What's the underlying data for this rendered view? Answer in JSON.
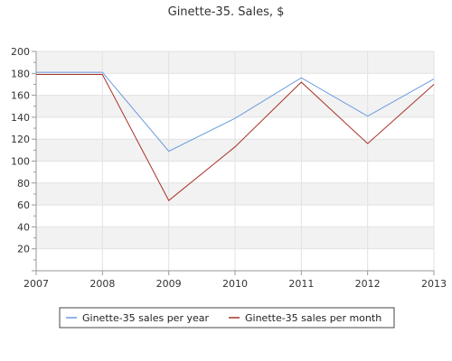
{
  "chart_data": {
    "type": "line",
    "title": "Ginette-35. Sales, $",
    "xlabel": "",
    "ylabel": "",
    "x": [
      "2007",
      "2008",
      "2009",
      "2010",
      "2011",
      "2012",
      "2013"
    ],
    "ylim": [
      0,
      200
    ],
    "yticks": [
      20,
      40,
      60,
      80,
      100,
      120,
      140,
      160,
      180,
      200
    ],
    "grid": true,
    "legend_position": "bottom",
    "series": [
      {
        "name": "Ginette-35 sales per year",
        "color": "#6a9be0",
        "values": [
          181,
          181,
          109,
          139,
          176,
          141,
          175
        ]
      },
      {
        "name": "Ginette-35 sales per month",
        "color": "#a83228",
        "values": [
          179,
          179,
          64,
          113,
          172,
          116,
          170
        ]
      }
    ]
  }
}
